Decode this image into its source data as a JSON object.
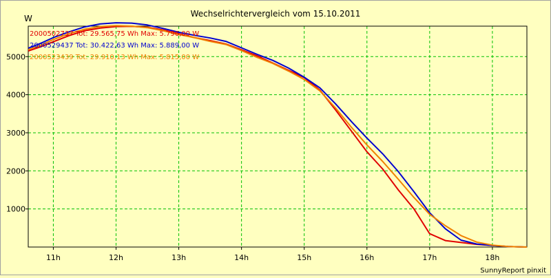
{
  "chart_data": {
    "type": "line",
    "title": "Wechselrichtervergleich vom 15.10.2011",
    "ylabel": "W",
    "xlabel": "",
    "footer": "SunnyReport pinxit",
    "xlim": [
      10.6,
      18.55
    ],
    "ylim": [
      0,
      5800
    ],
    "xticks": [
      11,
      12,
      13,
      14,
      15,
      16,
      17,
      18
    ],
    "xtick_labels": [
      "11h",
      "12h",
      "13h",
      "14h",
      "15h",
      "16h",
      "17h",
      "18h"
    ],
    "yticks": [
      1000,
      2000,
      3000,
      4000,
      5000
    ],
    "ytick_labels": [
      "1000",
      "2000",
      "3000",
      "4000",
      "5000"
    ],
    "grid": true,
    "legend_position": "top-left",
    "background_color": "#ffffc0",
    "series": [
      {
        "name": "2000502737",
        "label": "2000502737 Tot: 29.565,75 Wh Max: 5.796,00 W",
        "color": "#e00000",
        "x": [
          10.6,
          10.8,
          11.0,
          11.25,
          11.5,
          11.75,
          12.0,
          12.25,
          12.5,
          12.75,
          13.0,
          13.25,
          13.5,
          13.75,
          14.0,
          14.25,
          14.5,
          14.75,
          15.0,
          15.25,
          15.5,
          15.75,
          16.0,
          16.25,
          16.5,
          16.75,
          17.0,
          17.25,
          17.5,
          17.75,
          18.0,
          18.25,
          18.55
        ],
        "y": [
          5150,
          5260,
          5390,
          5550,
          5680,
          5750,
          5790,
          5796,
          5770,
          5700,
          5600,
          5500,
          5420,
          5330,
          5180,
          5020,
          4830,
          4640,
          4450,
          4120,
          3600,
          3050,
          2500,
          2050,
          1500,
          1000,
          350,
          170,
          120,
          70,
          40,
          15,
          0
        ]
      },
      {
        "name": "2000529437",
        "label": "2000529437 Tot: 30.422,63 Wh Max: 5.889,00 W",
        "color": "#0000d0",
        "x": [
          10.6,
          10.8,
          11.0,
          11.25,
          11.5,
          11.75,
          12.0,
          12.25,
          12.5,
          12.75,
          13.0,
          13.25,
          13.5,
          13.75,
          14.0,
          14.25,
          14.5,
          14.75,
          15.0,
          15.25,
          15.5,
          15.75,
          16.0,
          16.25,
          16.5,
          16.75,
          17.0,
          17.25,
          17.5,
          17.75,
          18.0,
          18.25,
          18.55
        ],
        "y": [
          5220,
          5350,
          5500,
          5650,
          5780,
          5860,
          5889,
          5880,
          5830,
          5740,
          5640,
          5560,
          5490,
          5400,
          5230,
          5060,
          4900,
          4700,
          4460,
          4180,
          3760,
          3300,
          2860,
          2450,
          1980,
          1450,
          900,
          480,
          180,
          80,
          40,
          15,
          0
        ]
      },
      {
        "name": "2000523439",
        "label": "2000523439 Tot: 29.910,13 Wh Max: 5.815,00 W",
        "color": "#f08000",
        "x": [
          10.6,
          10.8,
          11.0,
          11.25,
          11.5,
          11.75,
          12.0,
          12.25,
          12.5,
          12.75,
          13.0,
          13.25,
          13.5,
          13.75,
          14.0,
          14.25,
          14.5,
          14.75,
          15.0,
          15.25,
          15.5,
          15.75,
          16.0,
          16.25,
          16.5,
          16.75,
          17.0,
          17.25,
          17.5,
          17.75,
          18.0,
          18.25,
          18.55
        ],
        "y": [
          5180,
          5300,
          5450,
          5600,
          5720,
          5790,
          5815,
          5800,
          5760,
          5680,
          5580,
          5500,
          5400,
          5320,
          5160,
          4980,
          4820,
          4620,
          4400,
          4100,
          3650,
          3150,
          2680,
          2250,
          1780,
          1300,
          860,
          560,
          300,
          130,
          50,
          15,
          0
        ]
      }
    ]
  }
}
